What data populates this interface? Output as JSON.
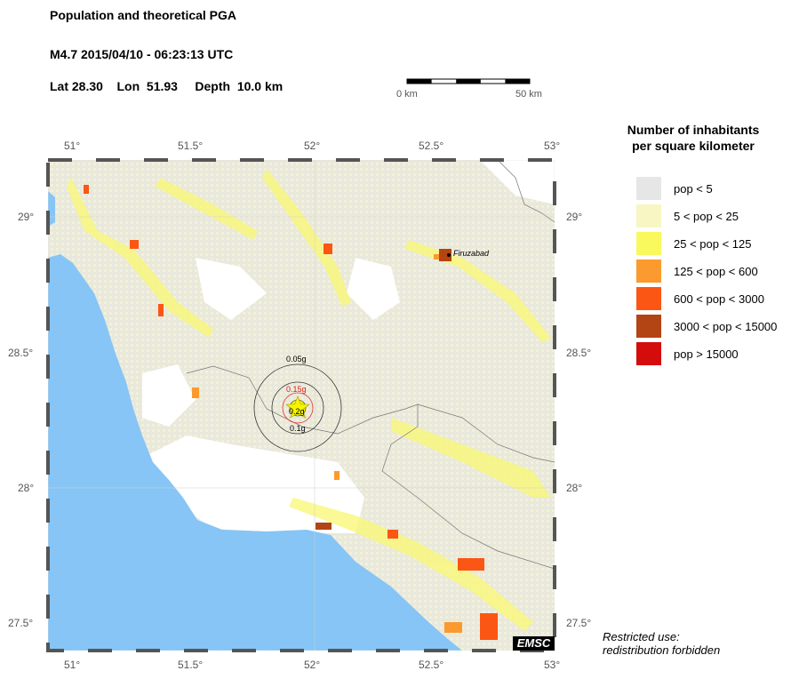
{
  "header": {
    "title": "Population and theoretical PGA",
    "event": "M4.7  2015/04/10 - 06:23:13 UTC",
    "location": "Lat 28.30    Lon  51.93     Depth  10.0 km"
  },
  "scale_bar": {
    "start": "0 km",
    "end": "50 km"
  },
  "axes": {
    "lon_ticks": [
      "51°",
      "51.5°",
      "52°",
      "52.5°",
      "53°"
    ],
    "lat_ticks": [
      "29°",
      "28.5°",
      "28°",
      "27.5°"
    ]
  },
  "map": {
    "city": "Firuzabad",
    "pga_labels": [
      "0.05g",
      "0.15g",
      "0.2g",
      "0.1g"
    ],
    "epicenter_icon": "star-icon",
    "sea_color": "#86c5f5",
    "logo": "EMSC"
  },
  "legend": {
    "title_line1": "Number of inhabitants",
    "title_line2": "per square kilometer",
    "items": [
      {
        "label": "pop < 5",
        "color": "#e6e6e6"
      },
      {
        "label": "5 < pop < 25",
        "color": "#f8f6c2"
      },
      {
        "label": "25 < pop < 125",
        "color": "#f9f95e"
      },
      {
        "label": "125 < pop < 600",
        "color": "#fb9a2e"
      },
      {
        "label": "600 < pop < 3000",
        "color": "#fb5614"
      },
      {
        "label": "3000 < pop < 15000",
        "color": "#b34413"
      },
      {
        "label": "pop > 15000",
        "color": "#d40c0c"
      }
    ]
  },
  "footer": {
    "line1": "Restricted use:",
    "line2": "redistribution forbidden"
  }
}
